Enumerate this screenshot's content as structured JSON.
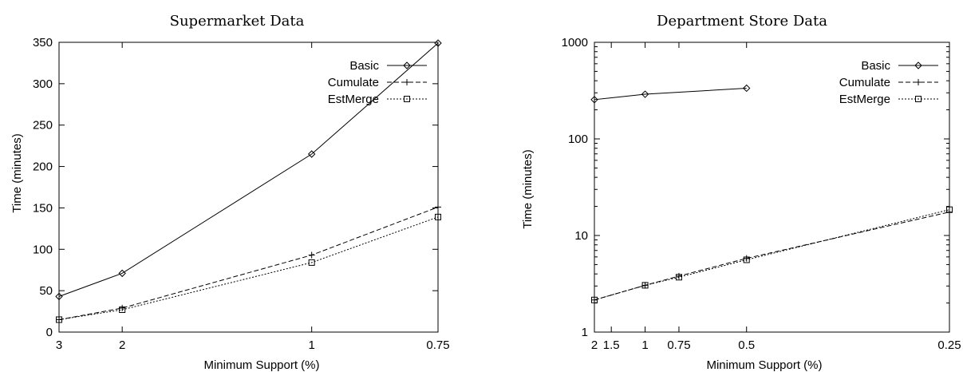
{
  "chart_data": [
    {
      "type": "line",
      "title": "Supermarket Data",
      "xlabel": "Minimum Support (%)",
      "ylabel": "Time (minutes)",
      "x_scale": "reciprocal",
      "xlim": [
        3,
        0.75
      ],
      "x_ticks": [
        3,
        2,
        1,
        0.75
      ],
      "x_tick_labels": [
        "3",
        "2",
        "1",
        "0.75"
      ],
      "ylim": [
        0,
        350
      ],
      "y_scale": "linear",
      "y_ticks": [
        0,
        50,
        100,
        150,
        200,
        250,
        300,
        350
      ],
      "y_tick_labels": [
        "0",
        "50",
        "100",
        "150",
        "200",
        "250",
        "300",
        "350"
      ],
      "legend_position": "top-right",
      "grid": false,
      "series": [
        {
          "name": "Basic",
          "marker": "diamond",
          "dash": "solid",
          "x": [
            3,
            2,
            1,
            0.75
          ],
          "y": [
            43,
            71,
            215,
            349
          ]
        },
        {
          "name": "Cumulate",
          "marker": "plus",
          "dash": "dashed",
          "x": [
            3,
            2,
            1,
            0.75
          ],
          "y": [
            15,
            29,
            93,
            151
          ]
        },
        {
          "name": "EstMerge",
          "marker": "square",
          "dash": "dotted",
          "x": [
            3,
            2,
            1,
            0.75
          ],
          "y": [
            15,
            27,
            84,
            139
          ]
        }
      ]
    },
    {
      "type": "line",
      "title": "Department Store Data",
      "xlabel": "Minimum Support (%)",
      "ylabel": "Time (minutes)",
      "x_scale": "reciprocal",
      "xlim": [
        2,
        0.25
      ],
      "x_ticks": [
        2,
        1.5,
        1,
        0.75,
        0.5,
        0.25
      ],
      "x_tick_labels": [
        "2",
        "1.5",
        "1",
        "0.75",
        "0.5",
        "0.25"
      ],
      "y_scale": "log",
      "ylim": [
        1,
        1000
      ],
      "y_ticks": [
        1,
        10,
        100,
        1000
      ],
      "y_tick_labels": [
        "1",
        "10",
        "100",
        "1000"
      ],
      "legend_position": "top-right",
      "grid": false,
      "series": [
        {
          "name": "Basic",
          "marker": "diamond",
          "dash": "solid",
          "x": [
            2,
            1,
            0.5
          ],
          "y": [
            255,
            290,
            335
          ]
        },
        {
          "name": "Cumulate",
          "marker": "plus",
          "dash": "dashed",
          "x": [
            2,
            1,
            0.75,
            0.5,
            0.25
          ],
          "y": [
            2.15,
            3.05,
            3.8,
            5.8,
            17.5
          ]
        },
        {
          "name": "EstMerge",
          "marker": "square",
          "dash": "dotted",
          "x": [
            2,
            1,
            0.75,
            0.5,
            0.25
          ],
          "y": [
            2.15,
            3.05,
            3.7,
            5.6,
            18.5
          ]
        }
      ]
    }
  ]
}
